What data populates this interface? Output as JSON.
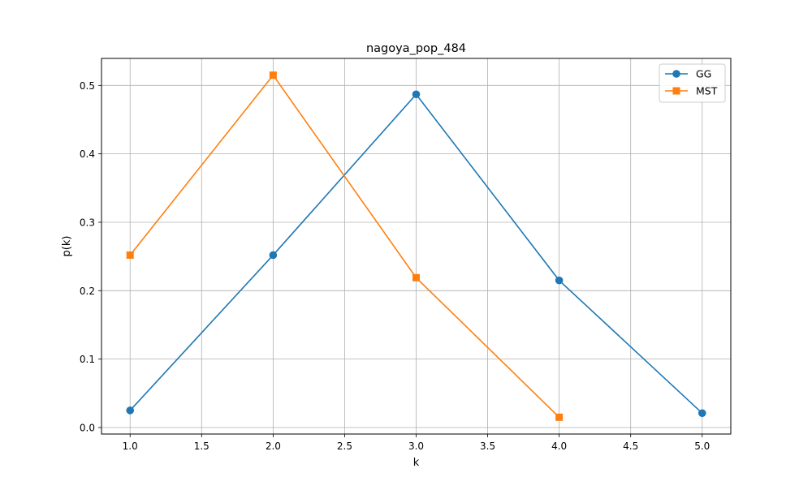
{
  "chart_data": {
    "type": "line",
    "title": "nagoya_pop_484",
    "xlabel": "k",
    "ylabel": "p(k)",
    "xlim": [
      0.8,
      5.2
    ],
    "ylim": [
      -0.0095,
      0.5395
    ],
    "xticks": [
      1.0,
      1.5,
      2.0,
      2.5,
      3.0,
      3.5,
      4.0,
      4.5,
      5.0
    ],
    "xtick_labels": [
      "1.0",
      "1.5",
      "2.0",
      "2.5",
      "3.0",
      "3.5",
      "4.0",
      "4.5",
      "5.0"
    ],
    "yticks": [
      0.0,
      0.1,
      0.2,
      0.3,
      0.4,
      0.5
    ],
    "ytick_labels": [
      "0.0",
      "0.1",
      "0.2",
      "0.3",
      "0.4",
      "0.5"
    ],
    "grid": true,
    "legend_position": "top-right",
    "series": [
      {
        "name": "GG",
        "color": "#1f77b4",
        "marker": "circle",
        "x": [
          1,
          2,
          3,
          4,
          5
        ],
        "y": [
          0.025,
          0.252,
          0.487,
          0.215,
          0.021
        ]
      },
      {
        "name": "MST",
        "color": "#ff7f0e",
        "marker": "square",
        "x": [
          1,
          2,
          3,
          4
        ],
        "y": [
          0.252,
          0.515,
          0.219,
          0.015
        ]
      }
    ]
  }
}
